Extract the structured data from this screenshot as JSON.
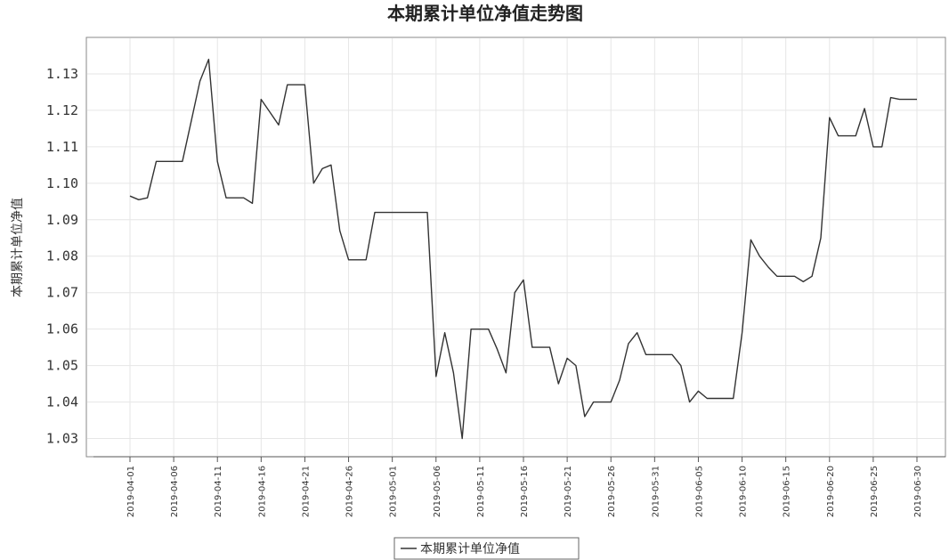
{
  "chart_data": {
    "type": "line",
    "title": "本期累计单位净值走势图",
    "ylabel": "本期累计单位净值",
    "xlabel": "",
    "ylim": [
      1.025,
      1.14
    ],
    "yticks": [
      "1.03",
      "1.04",
      "1.05",
      "1.06",
      "1.07",
      "1.08",
      "1.09",
      "1.10",
      "1.11",
      "1.12",
      "1.13"
    ],
    "xtick_labels": [
      "2019-04-01",
      "2019-04-06",
      "2019-04-11",
      "2019-04-16",
      "2019-04-21",
      "2019-04-26",
      "2019-05-01",
      "2019-05-06",
      "2019-05-11",
      "2019-05-16",
      "2019-05-21",
      "2019-05-26",
      "2019-05-31",
      "2019-06-05",
      "2019-06-10",
      "2019-06-15",
      "2019-06-20",
      "2019-06-25",
      "2019-06-30"
    ],
    "grid": true,
    "legend_position": "bottom-center",
    "line_color": "#333333",
    "series": [
      {
        "name": "本期累计单位净值",
        "points": [
          [
            "2019-04-01",
            1.0965
          ],
          [
            "2019-04-02",
            1.0955
          ],
          [
            "2019-04-03",
            1.096
          ],
          [
            "2019-04-04",
            1.106
          ],
          [
            "2019-04-05",
            1.106
          ],
          [
            "2019-04-06",
            1.106
          ],
          [
            "2019-04-07",
            1.106
          ],
          [
            "2019-04-08",
            1.117
          ],
          [
            "2019-04-09",
            1.128
          ],
          [
            "2019-04-10",
            1.134
          ],
          [
            "2019-04-11",
            1.106
          ],
          [
            "2019-04-12",
            1.096
          ],
          [
            "2019-04-13",
            1.096
          ],
          [
            "2019-04-14",
            1.096
          ],
          [
            "2019-04-15",
            1.0945
          ],
          [
            "2019-04-16",
            1.123
          ],
          [
            "2019-04-17",
            1.1195
          ],
          [
            "2019-04-18",
            1.116
          ],
          [
            "2019-04-19",
            1.127
          ],
          [
            "2019-04-20",
            1.127
          ],
          [
            "2019-04-21",
            1.127
          ],
          [
            "2019-04-22",
            1.1
          ],
          [
            "2019-04-23",
            1.104
          ],
          [
            "2019-04-24",
            1.105
          ],
          [
            "2019-04-25",
            1.087
          ],
          [
            "2019-04-26",
            1.079
          ],
          [
            "2019-04-27",
            1.079
          ],
          [
            "2019-04-28",
            1.079
          ],
          [
            "2019-04-29",
            1.092
          ],
          [
            "2019-04-30",
            1.092
          ],
          [
            "2019-05-01",
            1.092
          ],
          [
            "2019-05-02",
            1.092
          ],
          [
            "2019-05-03",
            1.092
          ],
          [
            "2019-05-04",
            1.092
          ],
          [
            "2019-05-05",
            1.092
          ],
          [
            "2019-05-06",
            1.047
          ],
          [
            "2019-05-07",
            1.059
          ],
          [
            "2019-05-08",
            1.048
          ],
          [
            "2019-05-09",
            1.03
          ],
          [
            "2019-05-10",
            1.06
          ],
          [
            "2019-05-11",
            1.06
          ],
          [
            "2019-05-12",
            1.06
          ],
          [
            "2019-05-13",
            1.0545
          ],
          [
            "2019-05-14",
            1.048
          ],
          [
            "2019-05-15",
            1.07
          ],
          [
            "2019-05-16",
            1.0735
          ],
          [
            "2019-05-17",
            1.055
          ],
          [
            "2019-05-18",
            1.055
          ],
          [
            "2019-05-19",
            1.055
          ],
          [
            "2019-05-20",
            1.045
          ],
          [
            "2019-05-21",
            1.052
          ],
          [
            "2019-05-22",
            1.05
          ],
          [
            "2019-05-23",
            1.036
          ],
          [
            "2019-05-24",
            1.04
          ],
          [
            "2019-05-25",
            1.04
          ],
          [
            "2019-05-26",
            1.04
          ],
          [
            "2019-05-27",
            1.046
          ],
          [
            "2019-05-28",
            1.056
          ],
          [
            "2019-05-29",
            1.059
          ],
          [
            "2019-05-30",
            1.053
          ],
          [
            "2019-05-31",
            1.053
          ],
          [
            "2019-06-01",
            1.053
          ],
          [
            "2019-06-02",
            1.053
          ],
          [
            "2019-06-03",
            1.05
          ],
          [
            "2019-06-04",
            1.04
          ],
          [
            "2019-06-05",
            1.043
          ],
          [
            "2019-06-06",
            1.041
          ],
          [
            "2019-06-07",
            1.041
          ],
          [
            "2019-06-08",
            1.041
          ],
          [
            "2019-06-09",
            1.041
          ],
          [
            "2019-06-10",
            1.059
          ],
          [
            "2019-06-11",
            1.0845
          ],
          [
            "2019-06-12",
            1.08
          ],
          [
            "2019-06-13",
            1.077
          ],
          [
            "2019-06-14",
            1.0745
          ],
          [
            "2019-06-15",
            1.0745
          ],
          [
            "2019-06-16",
            1.0745
          ],
          [
            "2019-06-17",
            1.073
          ],
          [
            "2019-06-18",
            1.0745
          ],
          [
            "2019-06-19",
            1.085
          ],
          [
            "2019-06-20",
            1.118
          ],
          [
            "2019-06-21",
            1.113
          ],
          [
            "2019-06-22",
            1.113
          ],
          [
            "2019-06-23",
            1.113
          ],
          [
            "2019-06-24",
            1.1205
          ],
          [
            "2019-06-25",
            1.11
          ],
          [
            "2019-06-26",
            1.11
          ],
          [
            "2019-06-27",
            1.1235
          ],
          [
            "2019-06-28",
            1.123
          ],
          [
            "2019-06-29",
            1.123
          ],
          [
            "2019-06-30",
            1.123
          ]
        ]
      }
    ]
  }
}
